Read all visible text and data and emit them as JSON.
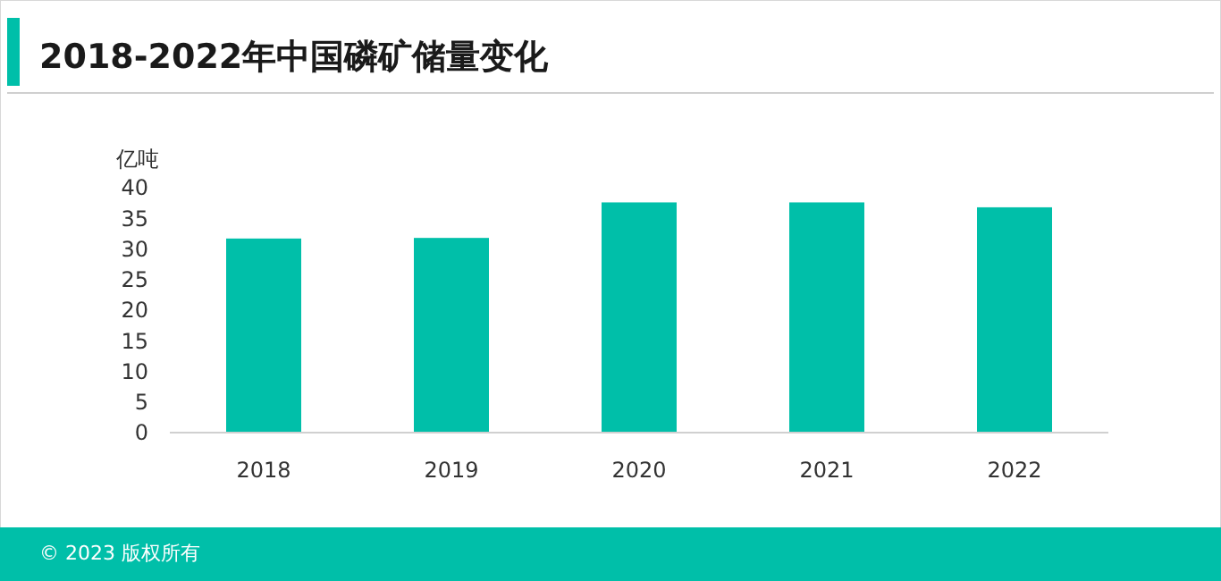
{
  "chart_data": {
    "type": "bar",
    "title": "2018-2022年中国磷矿储量变化",
    "ylabel": "亿吨",
    "categories": [
      "2018",
      "2019",
      "2020",
      "2021",
      "2022"
    ],
    "values": [
      31.7,
      31.8,
      37.6,
      37.6,
      36.8
    ],
    "color": "#00bfa9",
    "ylim": [
      0,
      40
    ],
    "yticks": [
      0,
      5,
      10,
      15,
      20,
      25,
      30,
      35,
      40
    ],
    "grid": false,
    "annotations": [
      "© 2023 版权所有"
    ]
  }
}
